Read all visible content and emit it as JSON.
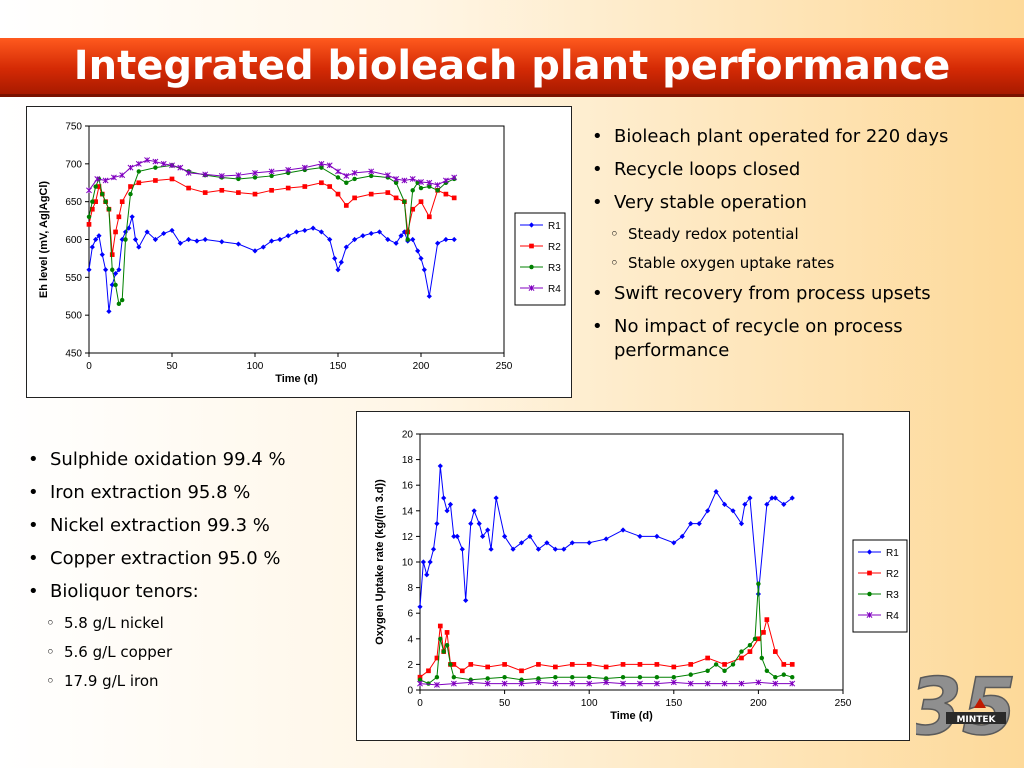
{
  "title": "Integrated bioleach plant performance",
  "bullets_right": [
    {
      "level": 1,
      "text": "Bioleach plant operated for 220 days"
    },
    {
      "level": 1,
      "text": "Recycle loops closed"
    },
    {
      "level": 1,
      "text": "Very stable operation"
    },
    {
      "level": 2,
      "text": "Steady redox potential"
    },
    {
      "level": 2,
      "text": "Stable oxygen uptake rates"
    },
    {
      "level": 1,
      "text": "Swift recovery from process upsets"
    },
    {
      "level": 1,
      "text": "No impact of recycle on process performance"
    }
  ],
  "bullets_left": [
    {
      "level": 1,
      "text": "Sulphide oxidation 99.4 %"
    },
    {
      "level": 1,
      "text": "Iron extraction 95.8 %"
    },
    {
      "level": 1,
      "text": "Nickel extraction 99.3 %"
    },
    {
      "level": 1,
      "text": "Copper extraction 95.0 %"
    },
    {
      "level": 1,
      "text": "Bioliquor tenors:"
    },
    {
      "level": 2,
      "text": "5.8 g/L nickel"
    },
    {
      "level": 2,
      "text": "5.6 g/L copper"
    },
    {
      "level": 2,
      "text": "17.9 g/L iron"
    }
  ],
  "logo": {
    "text": "MINTEK",
    "number": "35"
  },
  "chart_data": [
    {
      "type": "line",
      "ylabel": "Eh level (mV, Ag|AgCl)",
      "xlabel": "Time (d)",
      "xlim": [
        0,
        250
      ],
      "ylim": [
        450,
        750
      ],
      "xticks": [
        0,
        50,
        100,
        150,
        200,
        250
      ],
      "yticks": [
        450,
        500,
        550,
        600,
        650,
        700,
        750
      ],
      "legend": "right",
      "series": [
        {
          "name": "R1",
          "color": "#0000ff",
          "marker": "diamond",
          "x": [
            0,
            2,
            4,
            6,
            8,
            10,
            12,
            14,
            16,
            18,
            20,
            22,
            24,
            26,
            28,
            30,
            35,
            40,
            45,
            50,
            55,
            60,
            65,
            70,
            80,
            90,
            100,
            105,
            110,
            115,
            120,
            125,
            130,
            135,
            140,
            145,
            148,
            150,
            152,
            155,
            160,
            165,
            170,
            175,
            180,
            185,
            188,
            190,
            192,
            195,
            198,
            200,
            202,
            205,
            210,
            215,
            220
          ],
          "y": [
            560,
            590,
            600,
            605,
            580,
            560,
            505,
            540,
            555,
            560,
            600,
            610,
            615,
            630,
            600,
            590,
            610,
            600,
            608,
            612,
            595,
            600,
            598,
            600,
            597,
            594,
            585,
            590,
            598,
            600,
            605,
            610,
            612,
            615,
            610,
            600,
            575,
            560,
            570,
            590,
            600,
            605,
            608,
            610,
            600,
            595,
            605,
            610,
            598,
            600,
            585,
            575,
            560,
            525,
            595,
            600,
            600
          ]
        },
        {
          "name": "R2",
          "color": "#ff0000",
          "marker": "square",
          "x": [
            0,
            2,
            4,
            6,
            8,
            10,
            12,
            14,
            16,
            18,
            20,
            25,
            30,
            40,
            50,
            60,
            70,
            80,
            90,
            100,
            110,
            120,
            130,
            140,
            145,
            150,
            155,
            160,
            170,
            180,
            185,
            190,
            192,
            195,
            200,
            205,
            210,
            215,
            220
          ],
          "y": [
            620,
            640,
            650,
            670,
            660,
            650,
            640,
            580,
            610,
            630,
            650,
            670,
            675,
            678,
            680,
            668,
            662,
            665,
            662,
            660,
            665,
            668,
            670,
            675,
            670,
            660,
            645,
            655,
            660,
            662,
            655,
            650,
            610,
            640,
            650,
            630,
            665,
            660,
            655
          ]
        },
        {
          "name": "R3",
          "color": "#008000",
          "marker": "circle",
          "x": [
            0,
            2,
            4,
            6,
            8,
            10,
            12,
            14,
            16,
            18,
            20,
            22,
            25,
            30,
            40,
            50,
            60,
            70,
            80,
            90,
            100,
            110,
            120,
            130,
            140,
            150,
            155,
            160,
            170,
            180,
            185,
            190,
            192,
            195,
            198,
            200,
            205,
            210,
            215,
            220
          ],
          "y": [
            630,
            650,
            670,
            680,
            660,
            650,
            640,
            560,
            540,
            515,
            520,
            600,
            660,
            690,
            695,
            698,
            690,
            685,
            682,
            680,
            682,
            684,
            688,
            692,
            695,
            682,
            675,
            680,
            684,
            682,
            675,
            650,
            600,
            665,
            675,
            668,
            670,
            665,
            675,
            680
          ]
        },
        {
          "name": "R4",
          "color": "#8000c0",
          "marker": "x",
          "x": [
            0,
            5,
            10,
            15,
            20,
            25,
            30,
            35,
            40,
            45,
            50,
            55,
            60,
            70,
            80,
            90,
            100,
            110,
            120,
            130,
            140,
            145,
            150,
            155,
            160,
            170,
            180,
            185,
            190,
            195,
            200,
            205,
            210,
            215,
            220
          ],
          "y": [
            665,
            680,
            678,
            682,
            685,
            695,
            700,
            705,
            703,
            700,
            698,
            695,
            688,
            686,
            684,
            685,
            688,
            690,
            692,
            695,
            700,
            698,
            690,
            684,
            688,
            690,
            685,
            680,
            678,
            680,
            676,
            675,
            672,
            678,
            682
          ]
        }
      ]
    },
    {
      "type": "line",
      "ylabel": "Oxygen Uptake rate (kg/(m 3.d))",
      "xlabel": "Time (d)",
      "xlim": [
        0,
        250
      ],
      "ylim": [
        0,
        20
      ],
      "xticks": [
        0,
        50,
        100,
        150,
        200,
        250
      ],
      "yticks": [
        0,
        2,
        4,
        6,
        8,
        10,
        12,
        14,
        16,
        18,
        20
      ],
      "legend": "right",
      "series": [
        {
          "name": "R1",
          "color": "#0000ff",
          "marker": "diamond",
          "x": [
            0,
            2,
            4,
            6,
            8,
            10,
            12,
            14,
            16,
            18,
            20,
            22,
            25,
            27,
            30,
            32,
            35,
            37,
            40,
            42,
            45,
            50,
            55,
            60,
            65,
            70,
            75,
            80,
            85,
            90,
            100,
            110,
            120,
            130,
            140,
            150,
            155,
            160,
            165,
            170,
            175,
            180,
            185,
            190,
            192,
            195,
            200,
            205,
            208,
            210,
            215,
            220
          ],
          "y": [
            6.5,
            10,
            9,
            10,
            11,
            13,
            17.5,
            15,
            14,
            14.5,
            12,
            12,
            11,
            7,
            13,
            14,
            13,
            12,
            12.5,
            11,
            15,
            12,
            11,
            11.5,
            12,
            11,
            11.5,
            11,
            11,
            11.5,
            11.5,
            11.8,
            12.5,
            12,
            12,
            11.5,
            12,
            13,
            13,
            14,
            15.5,
            14.5,
            14,
            13,
            14.5,
            15,
            7.5,
            14.5,
            15,
            15,
            14.5,
            15
          ]
        },
        {
          "name": "R2",
          "color": "#ff0000",
          "marker": "square",
          "x": [
            0,
            5,
            10,
            12,
            14,
            16,
            18,
            20,
            25,
            30,
            40,
            50,
            60,
            70,
            80,
            90,
            100,
            110,
            120,
            130,
            140,
            150,
            160,
            170,
            180,
            190,
            195,
            200,
            203,
            205,
            210,
            215,
            220
          ],
          "y": [
            1,
            1.5,
            2.5,
            5,
            3,
            4.5,
            2,
            2,
            1.5,
            2,
            1.8,
            2,
            1.5,
            2,
            1.8,
            2,
            2,
            1.8,
            2,
            2,
            2,
            1.8,
            2,
            2.5,
            2,
            2.5,
            3,
            4,
            4.5,
            5.5,
            3,
            2,
            2
          ]
        },
        {
          "name": "R3",
          "color": "#008000",
          "marker": "circle",
          "x": [
            0,
            5,
            10,
            12,
            14,
            16,
            18,
            20,
            30,
            40,
            50,
            60,
            70,
            80,
            90,
            100,
            110,
            120,
            130,
            140,
            150,
            160,
            170,
            175,
            180,
            185,
            190,
            195,
            198,
            200,
            202,
            205,
            210,
            215,
            220
          ],
          "y": [
            0.8,
            0.5,
            1,
            4,
            3,
            3.5,
            2,
            1,
            0.8,
            0.9,
            1,
            0.8,
            0.9,
            1,
            1,
            1,
            0.9,
            1,
            1,
            1,
            1,
            1.2,
            1.5,
            2,
            1.5,
            2,
            3,
            3.5,
            4,
            8.3,
            2.5,
            1.5,
            1,
            1.2,
            1
          ]
        },
        {
          "name": "R4",
          "color": "#8000c0",
          "marker": "x",
          "x": [
            0,
            10,
            20,
            30,
            40,
            50,
            60,
            70,
            80,
            90,
            100,
            110,
            120,
            130,
            140,
            150,
            160,
            170,
            180,
            190,
            200,
            210,
            220
          ],
          "y": [
            0.5,
            0.4,
            0.5,
            0.6,
            0.5,
            0.5,
            0.5,
            0.6,
            0.5,
            0.5,
            0.5,
            0.6,
            0.5,
            0.5,
            0.5,
            0.6,
            0.5,
            0.5,
            0.5,
            0.5,
            0.6,
            0.5,
            0.5
          ]
        }
      ]
    }
  ]
}
